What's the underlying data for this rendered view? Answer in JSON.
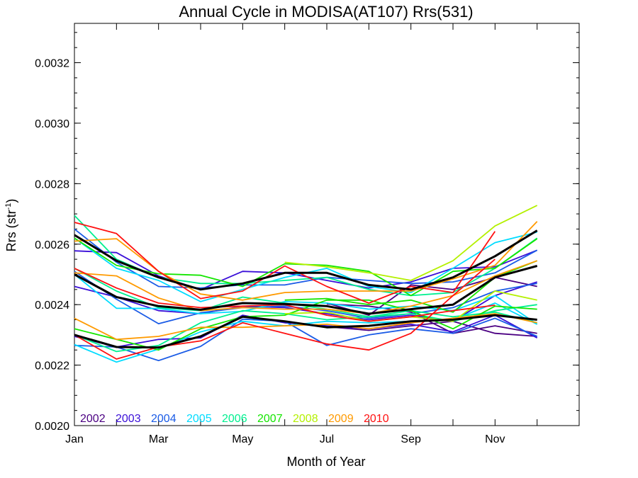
{
  "chart_data": {
    "type": "line",
    "title": "Annual Cycle in MODISA(AT107) Rrs(531)",
    "xlabel": "Month of Year",
    "ylabel": "Rrs (str",
    "ylabel_sup": "-1",
    "ylabel_close": ")",
    "x_ticks": [
      {
        "label": "Jan",
        "month": 1
      },
      {
        "label": "Mar",
        "month": 3
      },
      {
        "label": "May",
        "month": 5
      },
      {
        "label": "Jul",
        "month": 7
      },
      {
        "label": "Sep",
        "month": 9
      },
      {
        "label": "Nov",
        "month": 11
      }
    ],
    "xlim": [
      1,
      13
    ],
    "ylim": [
      0.002,
      0.00333
    ],
    "y_ticks": [
      0.002,
      0.0022,
      0.0024,
      0.0026,
      0.0028,
      0.003,
      0.0032
    ],
    "y_tick_labels": [
      "0.0020",
      "0.0022",
      "0.0024",
      "0.0026",
      "0.0028",
      "0.0030",
      "0.0032"
    ],
    "grid": false,
    "legend_position": "bottom-left",
    "x": [
      1,
      2,
      3,
      4,
      5,
      6,
      7,
      8,
      9,
      10,
      11,
      12
    ],
    "series": [
      {
        "name": "2002",
        "color": "#4b0082",
        "values": [
          null,
          null,
          null,
          null,
          null,
          null,
          0.002402,
          0.002395,
          0.002375,
          0.002305,
          0.00233,
          0.002305
        ]
      },
      {
        "name": "2002",
        "color": "#4b0082",
        "values": [
          null,
          null,
          null,
          null,
          null,
          null,
          0.002327,
          0.002315,
          0.00233,
          0.002345,
          0.002305,
          0.002295
        ]
      },
      {
        "name": "2002",
        "color": "#4b0082",
        "values": [
          null,
          null,
          null,
          null,
          null,
          null,
          0.002405,
          0.002365,
          0.002465,
          0.00245,
          0.00249,
          0.00246
        ]
      },
      {
        "name": "2003",
        "color": "#3a0fd8",
        "values": [
          0.002578,
          0.002572,
          0.002495,
          0.00245,
          0.00251,
          0.002505,
          0.00248,
          0.002455,
          0.002475,
          0.00252,
          0.002525,
          0.00258
        ]
      },
      {
        "name": "2003",
        "color": "#3a0fd8",
        "values": [
          0.00246,
          0.002425,
          0.00238,
          0.00237,
          0.002395,
          0.00239,
          0.00237,
          0.00235,
          0.002365,
          0.002345,
          0.00243,
          0.002475
        ]
      },
      {
        "name": "2003",
        "color": "#3a0fd8",
        "values": [
          0.002295,
          0.00226,
          0.002285,
          0.00229,
          0.002365,
          0.00234,
          0.00233,
          0.00232,
          0.002335,
          0.00231,
          0.002365,
          0.00229
        ]
      },
      {
        "name": "2004",
        "color": "#1a5be6",
        "values": [
          0.00265,
          0.00254,
          0.00246,
          0.002455,
          0.002465,
          0.002465,
          0.00249,
          0.00248,
          0.00247,
          0.002475,
          0.002505,
          0.00258
        ]
      },
      {
        "name": "2004",
        "color": "#1a5be6",
        "values": [
          0.00251,
          0.002418,
          0.002337,
          0.002373,
          0.00239,
          0.002395,
          0.00238,
          0.002355,
          0.00237,
          0.00239,
          0.002445,
          0.00247
        ]
      },
      {
        "name": "2004",
        "color": "#1a5be6",
        "values": [
          0.002265,
          0.00226,
          0.002215,
          0.002262,
          0.002352,
          0.002345,
          0.002265,
          0.0023,
          0.00232,
          0.002305,
          0.002355,
          0.002295
        ]
      },
      {
        "name": "2005",
        "color": "#00dcff",
        "values": [
          0.00262,
          0.00252,
          0.00248,
          0.00241,
          0.00245,
          0.00249,
          0.00252,
          0.00246,
          0.00244,
          0.00252,
          0.002605,
          0.00264
        ]
      },
      {
        "name": "2005",
        "color": "#00dcff",
        "values": [
          0.0025,
          0.002388,
          0.002387,
          0.00237,
          0.002378,
          0.00241,
          0.002405,
          0.002385,
          0.002395,
          0.00238,
          0.00243,
          0.002335
        ]
      },
      {
        "name": "2005",
        "color": "#00dcff",
        "values": [
          0.002268,
          0.00221,
          0.002253,
          0.00231,
          0.002345,
          0.00233,
          0.002345,
          0.00234,
          0.002345,
          0.00235,
          0.002405,
          0.002335
        ]
      },
      {
        "name": "2006",
        "color": "#00f090",
        "values": [
          0.002695,
          0.00255,
          0.00249,
          0.00247,
          0.00247,
          0.00248,
          0.00249,
          0.00245,
          0.00243,
          0.00244,
          0.00252,
          0.00262
        ]
      },
      {
        "name": "2006",
        "color": "#00f090",
        "values": [
          0.00252,
          0.002445,
          0.00239,
          0.00238,
          0.002425,
          0.002405,
          0.002385,
          0.00236,
          0.00237,
          0.002345,
          0.00238,
          0.0024
        ]
      },
      {
        "name": "2006",
        "color": "#00f090",
        "values": [
          0.0023,
          0.002245,
          0.002265,
          0.00234,
          0.00238,
          0.00237,
          0.00235,
          0.00236,
          0.00238,
          0.00236,
          0.002375,
          0.00234
        ]
      },
      {
        "name": "2007",
        "color": "#14e600",
        "values": [
          0.00262,
          0.00253,
          0.002502,
          0.002497,
          0.00246,
          0.002535,
          0.00253,
          0.00251,
          0.00243,
          0.00251,
          0.00252,
          0.002618
        ]
      },
      {
        "name": "2007",
        "color": "#14e600",
        "values": [
          0.00232,
          0.002285,
          0.00225,
          0.00232,
          0.00236,
          0.002365,
          0.002415,
          0.002415,
          0.00238,
          0.00232,
          0.002395,
          0.002385
        ]
      },
      {
        "name": "2007",
        "color": "#14e600",
        "values": [
          null,
          null,
          null,
          null,
          null,
          0.002415,
          0.00242,
          0.0024,
          0.002415,
          0.002375,
          0.00249,
          0.002545
        ]
      },
      {
        "name": "2008",
        "color": "#b4f000",
        "values": [
          null,
          null,
          null,
          null,
          null,
          0.00254,
          0.002525,
          0.002505,
          0.00248,
          0.002545,
          0.00266,
          0.002728
        ]
      },
      {
        "name": "2008",
        "color": "#b4f000",
        "values": [
          null,
          null,
          null,
          null,
          null,
          0.00237,
          0.002375,
          0.002345,
          0.00236,
          0.002345,
          0.002445,
          0.002415
        ]
      },
      {
        "name": "2009",
        "color": "#ff9a00",
        "values": [
          0.00261,
          0.002618,
          0.00251,
          0.002435,
          0.002415,
          0.00244,
          0.002445,
          0.002445,
          0.002445,
          0.002485,
          0.00253,
          0.002675
        ]
      },
      {
        "name": "2009",
        "color": "#ff9a00",
        "values": [
          0.002505,
          0.002495,
          0.002422,
          0.00238,
          0.00239,
          0.002385,
          0.002385,
          0.00237,
          0.002395,
          0.00243,
          0.002495,
          0.002545
        ]
      },
      {
        "name": "2009",
        "color": "#ff9a00",
        "values": [
          0.002355,
          0.002285,
          0.002295,
          0.002325,
          0.002325,
          0.00233,
          0.002335,
          0.00232,
          0.00234,
          0.002355,
          0.00237,
          0.00234
        ]
      },
      {
        "name": "2010",
        "color": "#ff1010",
        "values": [
          0.002672,
          0.002635,
          0.00251,
          0.00242,
          0.002445,
          0.002528,
          0.00246,
          0.002405,
          0.00246,
          0.00244,
          0.002642,
          null
        ]
      },
      {
        "name": "2010",
        "color": "#ff1010",
        "values": [
          0.00252,
          0.002455,
          0.002405,
          0.00239,
          0.002395,
          0.0024,
          0.002365,
          0.002345,
          0.00236,
          0.00238,
          0.002398,
          null
        ]
      },
      {
        "name": "2010",
        "color": "#ff1010",
        "values": [
          0.0023,
          0.00222,
          0.00226,
          0.00228,
          0.00234,
          0.002305,
          0.00227,
          0.00225,
          0.002305,
          0.00243,
          0.00255,
          null
        ]
      },
      {
        "name": "mean",
        "color": "#000000",
        "values": [
          0.00263,
          0.002545,
          0.00249,
          0.00245,
          0.00247,
          0.002505,
          0.002505,
          0.002465,
          0.00245,
          0.00249,
          0.00256,
          0.002645
        ]
      },
      {
        "name": "mean",
        "color": "#000000",
        "values": [
          0.0025,
          0.002425,
          0.002395,
          0.002383,
          0.002405,
          0.002402,
          0.002395,
          0.00237,
          0.002385,
          0.0024,
          0.00249,
          0.002528
        ]
      },
      {
        "name": "mean",
        "color": "#000000",
        "values": [
          0.0023,
          0.00226,
          0.002258,
          0.002295,
          0.00236,
          0.002345,
          0.002325,
          0.00233,
          0.002345,
          0.00235,
          0.002365,
          0.00235
        ]
      }
    ],
    "legend": [
      {
        "label": "2002",
        "color": "#4b0082"
      },
      {
        "label": "2003",
        "color": "#3a0fd8"
      },
      {
        "label": "2004",
        "color": "#1a5be6"
      },
      {
        "label": "2005",
        "color": "#00dcff"
      },
      {
        "label": "2006",
        "color": "#00f090"
      },
      {
        "label": "2007",
        "color": "#14e600"
      },
      {
        "label": "2008",
        "color": "#b4f000"
      },
      {
        "label": "2009",
        "color": "#ff9a00"
      },
      {
        "label": "2010",
        "color": "#ff1010"
      }
    ]
  }
}
